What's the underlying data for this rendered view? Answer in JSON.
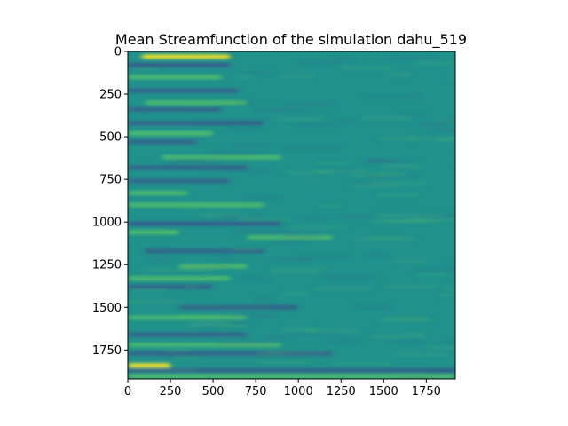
{
  "chart_data": {
    "type": "heatmap",
    "title": "Mean Streamfunction of the simulation dahu_519",
    "xlabel": "",
    "ylabel": "",
    "xlim": [
      0,
      1920
    ],
    "ylim": [
      1920,
      0
    ],
    "x_ticks": [
      0,
      250,
      500,
      750,
      1000,
      1250,
      1500,
      1750
    ],
    "y_ticks": [
      0,
      250,
      500,
      750,
      1000,
      1250,
      1500,
      1750
    ],
    "x_tick_labels": [
      "0",
      "250",
      "500",
      "750",
      "1000",
      "1250",
      "1500",
      "1750"
    ],
    "y_tick_labels": [
      "0",
      "250",
      "500",
      "750",
      "1000",
      "1250",
      "1500",
      "1750"
    ],
    "colormap": "viridis",
    "colormap_stops": [
      "#440154",
      "#3b528b",
      "#21918c",
      "#5ec962",
      "#fde725"
    ],
    "background_color": "#21918c",
    "grid": false,
    "legend": "none",
    "bands": [
      {
        "y": 30,
        "x_start": 80,
        "x_end": 600,
        "intensity": 0.9,
        "sign": 1
      },
      {
        "y": 80,
        "x_start": 0,
        "x_end": 600,
        "intensity": 0.7,
        "sign": -1
      },
      {
        "y": 150,
        "x_start": 0,
        "x_end": 550,
        "intensity": 0.5,
        "sign": 1
      },
      {
        "y": 230,
        "x_start": 0,
        "x_end": 650,
        "intensity": 0.45,
        "sign": -1
      },
      {
        "y": 300,
        "x_start": 100,
        "x_end": 700,
        "intensity": 0.5,
        "sign": 1
      },
      {
        "y": 340,
        "x_start": 0,
        "x_end": 550,
        "intensity": 0.4,
        "sign": -1
      },
      {
        "y": 420,
        "x_start": 0,
        "x_end": 800,
        "intensity": 0.45,
        "sign": -1
      },
      {
        "y": 480,
        "x_start": 0,
        "x_end": 500,
        "intensity": 0.6,
        "sign": 1
      },
      {
        "y": 530,
        "x_start": 0,
        "x_end": 400,
        "intensity": 0.45,
        "sign": -1
      },
      {
        "y": 620,
        "x_start": 200,
        "x_end": 900,
        "intensity": 0.45,
        "sign": 1
      },
      {
        "y": 680,
        "x_start": 0,
        "x_end": 700,
        "intensity": 0.4,
        "sign": -1
      },
      {
        "y": 760,
        "x_start": 0,
        "x_end": 600,
        "intensity": 0.4,
        "sign": -1
      },
      {
        "y": 830,
        "x_start": 0,
        "x_end": 350,
        "intensity": 0.5,
        "sign": 1
      },
      {
        "y": 900,
        "x_start": 0,
        "x_end": 800,
        "intensity": 0.5,
        "sign": 1
      },
      {
        "y": 1010,
        "x_start": 0,
        "x_end": 900,
        "intensity": 0.55,
        "sign": -1
      },
      {
        "y": 1060,
        "x_start": 0,
        "x_end": 300,
        "intensity": 0.55,
        "sign": 1
      },
      {
        "y": 1090,
        "x_start": 700,
        "x_end": 1200,
        "intensity": 0.45,
        "sign": 1
      },
      {
        "y": 1170,
        "x_start": 100,
        "x_end": 800,
        "intensity": 0.4,
        "sign": -1
      },
      {
        "y": 1260,
        "x_start": 300,
        "x_end": 700,
        "intensity": 0.55,
        "sign": 1
      },
      {
        "y": 1330,
        "x_start": 0,
        "x_end": 600,
        "intensity": 0.5,
        "sign": 1
      },
      {
        "y": 1380,
        "x_start": 0,
        "x_end": 500,
        "intensity": 0.45,
        "sign": -1
      },
      {
        "y": 1500,
        "x_start": 300,
        "x_end": 1000,
        "intensity": 0.4,
        "sign": -1
      },
      {
        "y": 1560,
        "x_start": 0,
        "x_end": 700,
        "intensity": 0.4,
        "sign": 1
      },
      {
        "y": 1660,
        "x_start": 0,
        "x_end": 700,
        "intensity": 0.45,
        "sign": -1
      },
      {
        "y": 1720,
        "x_start": 0,
        "x_end": 900,
        "intensity": 0.4,
        "sign": 1
      },
      {
        "y": 1770,
        "x_start": 0,
        "x_end": 1200,
        "intensity": 0.45,
        "sign": -1
      },
      {
        "y": 1840,
        "x_start": 0,
        "x_end": 250,
        "intensity": 0.9,
        "sign": 1
      },
      {
        "y": 1870,
        "x_start": 0,
        "x_end": 1920,
        "intensity": 0.6,
        "sign": -1
      },
      {
        "y": 1905,
        "x_start": 0,
        "x_end": 1920,
        "intensity": 0.55,
        "sign": 1
      }
    ]
  }
}
